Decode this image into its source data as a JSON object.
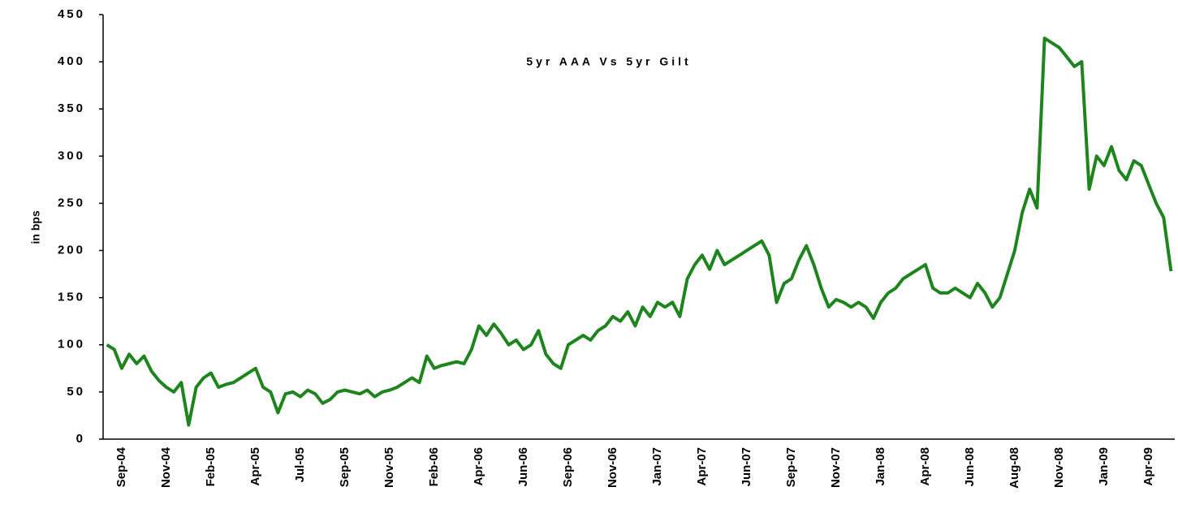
{
  "chart_data": {
    "type": "line",
    "title": "5yr AAA Vs 5yr Gilt",
    "y_label": "in bps",
    "categories": [
      null,
      null,
      "Sep-04",
      null,
      null,
      null,
      null,
      null,
      "Nov-04",
      null,
      null,
      null,
      null,
      null,
      "Feb-05",
      null,
      null,
      null,
      null,
      null,
      "Apr-05",
      null,
      null,
      null,
      null,
      null,
      "Jul-05",
      null,
      null,
      null,
      null,
      null,
      "Sep-05",
      null,
      null,
      null,
      null,
      null,
      "Nov-05",
      null,
      null,
      null,
      null,
      null,
      "Feb-06",
      null,
      null,
      null,
      null,
      null,
      "Apr-06",
      null,
      null,
      null,
      null,
      null,
      "Jun-06",
      null,
      null,
      null,
      null,
      null,
      "Sep-06",
      null,
      null,
      null,
      null,
      null,
      "Nov-06",
      null,
      null,
      null,
      null,
      null,
      "Jan-07",
      null,
      null,
      null,
      null,
      null,
      "Apr-07",
      null,
      null,
      null,
      null,
      null,
      "Jun-07",
      null,
      null,
      null,
      null,
      null,
      "Sep-07",
      null,
      null,
      null,
      null,
      null,
      "Nov-07",
      null,
      null,
      null,
      null,
      null,
      "Jan-08",
      null,
      null,
      null,
      null,
      null,
      "Apr-08",
      null,
      null,
      null,
      null,
      null,
      "Jun-08",
      null,
      null,
      null,
      null,
      null,
      "Aug-08",
      null,
      null,
      null,
      null,
      null,
      "Nov-08",
      null,
      null,
      null,
      null,
      null,
      "Jan-09",
      null,
      null,
      null,
      null,
      null,
      "Apr-09",
      null,
      null,
      null
    ],
    "series": [
      {
        "name": "5yr AAA Vs 5yr Gilt",
        "color": "#1e841e",
        "values": [
          100,
          95,
          75,
          90,
          80,
          88,
          72,
          62,
          55,
          50,
          60,
          15,
          55,
          65,
          70,
          55,
          58,
          60,
          65,
          70,
          75,
          55,
          50,
          28,
          48,
          50,
          45,
          52,
          48,
          38,
          42,
          50,
          52,
          50,
          48,
          52,
          45,
          50,
          52,
          55,
          60,
          65,
          60,
          88,
          75,
          78,
          80,
          82,
          80,
          95,
          120,
          110,
          122,
          112,
          100,
          105,
          95,
          100,
          115,
          90,
          80,
          75,
          100,
          105,
          110,
          105,
          115,
          120,
          130,
          125,
          135,
          120,
          140,
          130,
          145,
          140,
          145,
          130,
          170,
          185,
          195,
          180,
          200,
          185,
          190,
          195,
          200,
          205,
          210,
          195,
          145,
          165,
          170,
          190,
          205,
          185,
          160,
          140,
          148,
          145,
          140,
          145,
          140,
          128,
          145,
          155,
          160,
          170,
          175,
          180,
          185,
          160,
          155,
          155,
          160,
          155,
          150,
          165,
          155,
          140,
          150,
          175,
          200,
          240,
          265,
          245,
          425,
          420,
          415,
          405,
          395,
          400,
          265,
          300,
          290,
          310,
          285,
          275,
          295,
          290,
          270,
          250,
          235,
          178
        ]
      }
    ],
    "ylim": [
      0,
      450
    ],
    "yticks": [
      0,
      50,
      100,
      150,
      200,
      250,
      300,
      350,
      400,
      450
    ]
  }
}
